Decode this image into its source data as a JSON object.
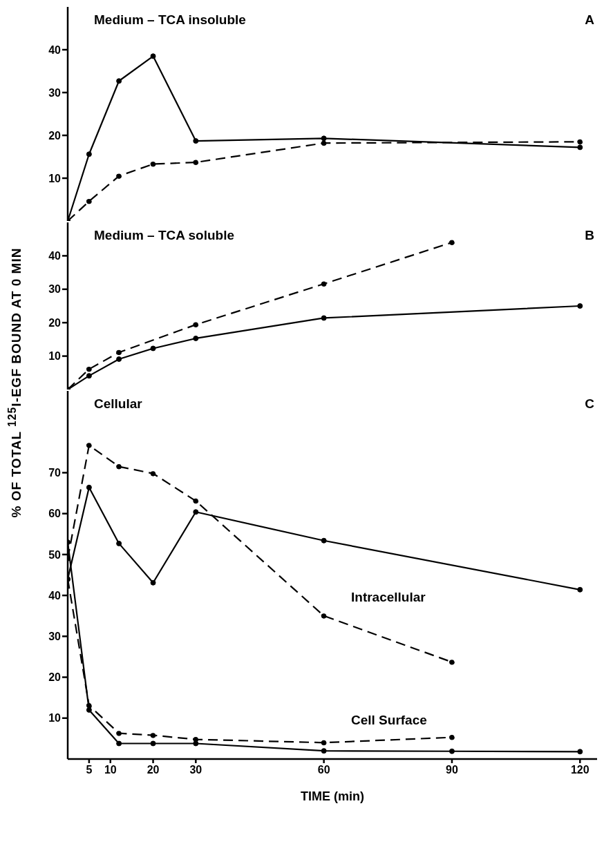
{
  "chart_data": [
    {
      "type": "line",
      "title": "Medium – TCA insoluble",
      "annotations": [
        "A"
      ],
      "xlim": [
        0,
        124
      ],
      "xticks": [
        5,
        10,
        20,
        30,
        60,
        90,
        120
      ],
      "ylim": [
        0,
        50
      ],
      "yticks": [
        10,
        20,
        30,
        40
      ],
      "tick_labels": "y",
      "grid": false,
      "marker": "circle",
      "series": [
        {
          "color": "#000000",
          "line_style": "solid",
          "x": [
            0,
            5,
            12,
            20,
            30,
            60,
            120
          ],
          "values": [
            0,
            15.6,
            32.7,
            38.5,
            18.7,
            19.3,
            17.2
          ]
        },
        {
          "color": "#000000",
          "line_style": "dashed",
          "x": [
            0,
            5,
            12,
            20,
            30,
            60,
            120
          ],
          "values": [
            0,
            4.6,
            10.5,
            13.3,
            13.7,
            18.2,
            18.5
          ]
        }
      ]
    },
    {
      "type": "line",
      "title": "Medium – TCA soluble",
      "ylabel": "% OF TOTAL $^{125}$I-EGF BOUND AT 0 MIN",
      "annotations": [
        "B"
      ],
      "xlim": [
        0,
        124
      ],
      "xticks": [
        5,
        10,
        20,
        30,
        60,
        90,
        120
      ],
      "ylim": [
        0,
        50
      ],
      "yticks": [
        10,
        20,
        30,
        40
      ],
      "tick_labels": "y",
      "grid": false,
      "marker": "circle",
      "series": [
        {
          "color": "#000000",
          "line_style": "solid",
          "x": [
            0,
            5,
            12,
            20,
            30,
            60,
            120
          ],
          "values": [
            0,
            4.1,
            9.1,
            12.3,
            15.3,
            21.4,
            25.0
          ]
        },
        {
          "color": "#000000",
          "line_style": "dashed",
          "x": [
            0,
            5,
            12,
            30,
            60,
            90
          ],
          "values": [
            0,
            6.1,
            11.1,
            19.4,
            31.6,
            44.0
          ]
        }
      ]
    },
    {
      "type": "line",
      "title": "Cellular",
      "xlabel": "TIME (min)",
      "annotations": [
        "C",
        "Intracellular",
        "Cell Surface"
      ],
      "xlim": [
        0,
        124
      ],
      "xticks": [
        5,
        10,
        20,
        30,
        60,
        90,
        120
      ],
      "ylim": [
        0,
        90
      ],
      "yticks": [
        10,
        20,
        30,
        40,
        50,
        60,
        70
      ],
      "grid": false,
      "marker": "circle",
      "series": [
        {
          "color": "#000000",
          "line_style": "solid",
          "x": [
            0,
            5,
            12,
            20,
            30,
            60,
            120
          ],
          "values": [
            44,
            66.4,
            52.7,
            43.1,
            60.4,
            53.4,
            41.4
          ]
        },
        {
          "color": "#000000",
          "line_style": "dashed",
          "x": [
            0,
            5,
            12,
            20,
            30,
            60,
            90
          ],
          "values": [
            49,
            76.7,
            71.5,
            69.8,
            63.1,
            35,
            23.7
          ]
        },
        {
          "color": "#000000",
          "line_style": "solid",
          "x": [
            0,
            5,
            12,
            20,
            30,
            60,
            90,
            120
          ],
          "values": [
            53,
            12,
            3.8,
            3.8,
            3.8,
            2.0,
            1.9,
            1.8
          ]
        },
        {
          "color": "#000000",
          "line_style": "dashed",
          "x": [
            0,
            5,
            12,
            20,
            30,
            60,
            90
          ],
          "values": [
            44,
            13.1,
            6.3,
            5.8,
            4.8,
            4.0,
            5.3
          ]
        }
      ]
    }
  ]
}
